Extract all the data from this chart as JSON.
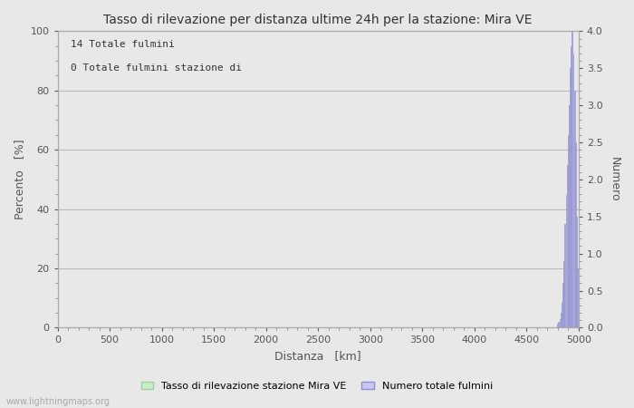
{
  "title": "Tasso di rilevazione per distanza ultime 24h per la stazione: Mira VE",
  "xlabel": "Distanza   [km]",
  "ylabel_left": "Percento   [%]",
  "ylabel_right": "Numero",
  "annotation_line1": "14 Totale fulmini",
  "annotation_line2": "0 Totale fulmini stazione di",
  "xlim": [
    0,
    5000
  ],
  "ylim_left": [
    0,
    100
  ],
  "ylim_right": [
    0,
    4.0
  ],
  "xticks": [
    0,
    500,
    1000,
    1500,
    2000,
    2500,
    3000,
    3500,
    4000,
    4500,
    5000
  ],
  "yticks_left": [
    0,
    20,
    40,
    60,
    80,
    100
  ],
  "yticks_right": [
    0.0,
    0.5,
    1.0,
    1.5,
    2.0,
    2.5,
    3.0,
    3.5,
    4.0
  ],
  "bg_color": "#e8e8e8",
  "plot_bg_color": "#e8e8e8",
  "grid_color": "#bbbbbb",
  "bar_color_green": "#c8eec8",
  "bar_color_green_edge": "#a0d0a0",
  "bar_color_blue_fill": "#c8c8f0",
  "bar_color_blue_edge": "#9090d0",
  "watermark": "www.lightningmaps.org",
  "legend_label_green": "Tasso di rilevazione stazione Mira VE",
  "legend_label_blue": "Numero totale fulmini",
  "bar_distances": [
    4800,
    4810,
    4820,
    4830,
    4840,
    4850,
    4860,
    4870,
    4880,
    4890,
    4900,
    4910,
    4920,
    4930,
    4940,
    4950,
    4960,
    4970,
    4980,
    4990
  ],
  "bar_heights": [
    0.05,
    0.08,
    0.12,
    0.2,
    0.35,
    0.6,
    0.9,
    1.4,
    1.8,
    2.2,
    2.6,
    3.0,
    3.5,
    3.8,
    4.0,
    3.7,
    3.2,
    2.5,
    1.5,
    0.8
  ]
}
